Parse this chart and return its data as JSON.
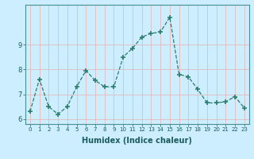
{
  "x": [
    0,
    1,
    2,
    3,
    4,
    5,
    6,
    7,
    8,
    9,
    10,
    11,
    12,
    13,
    14,
    15,
    16,
    17,
    18,
    19,
    20,
    21,
    22,
    23
  ],
  "y": [
    6.3,
    7.6,
    6.5,
    6.2,
    6.5,
    7.3,
    7.95,
    7.55,
    7.3,
    7.3,
    8.5,
    8.85,
    9.3,
    9.45,
    9.5,
    10.1,
    7.8,
    7.7,
    7.2,
    6.65,
    6.65,
    6.7,
    6.9,
    6.45
  ],
  "xlabel": "Humidex (Indice chaleur)",
  "line_color": "#2e7d6e",
  "marker": "+",
  "bg_color": "#cceeff",
  "grid_color": "#e8b0b0",
  "ylim_min": 5.8,
  "ylim_max": 10.6,
  "xlim_min": -0.5,
  "xlim_max": 23.5,
  "yticks": [
    6,
    7,
    8,
    9
  ],
  "xtick_labels": [
    "0",
    "1",
    "2",
    "3",
    "4",
    "5",
    "6",
    "7",
    "8",
    "9",
    "10",
    "11",
    "12",
    "13",
    "14",
    "15",
    "16",
    "17",
    "18",
    "19",
    "20",
    "21",
    "22",
    "23"
  ]
}
